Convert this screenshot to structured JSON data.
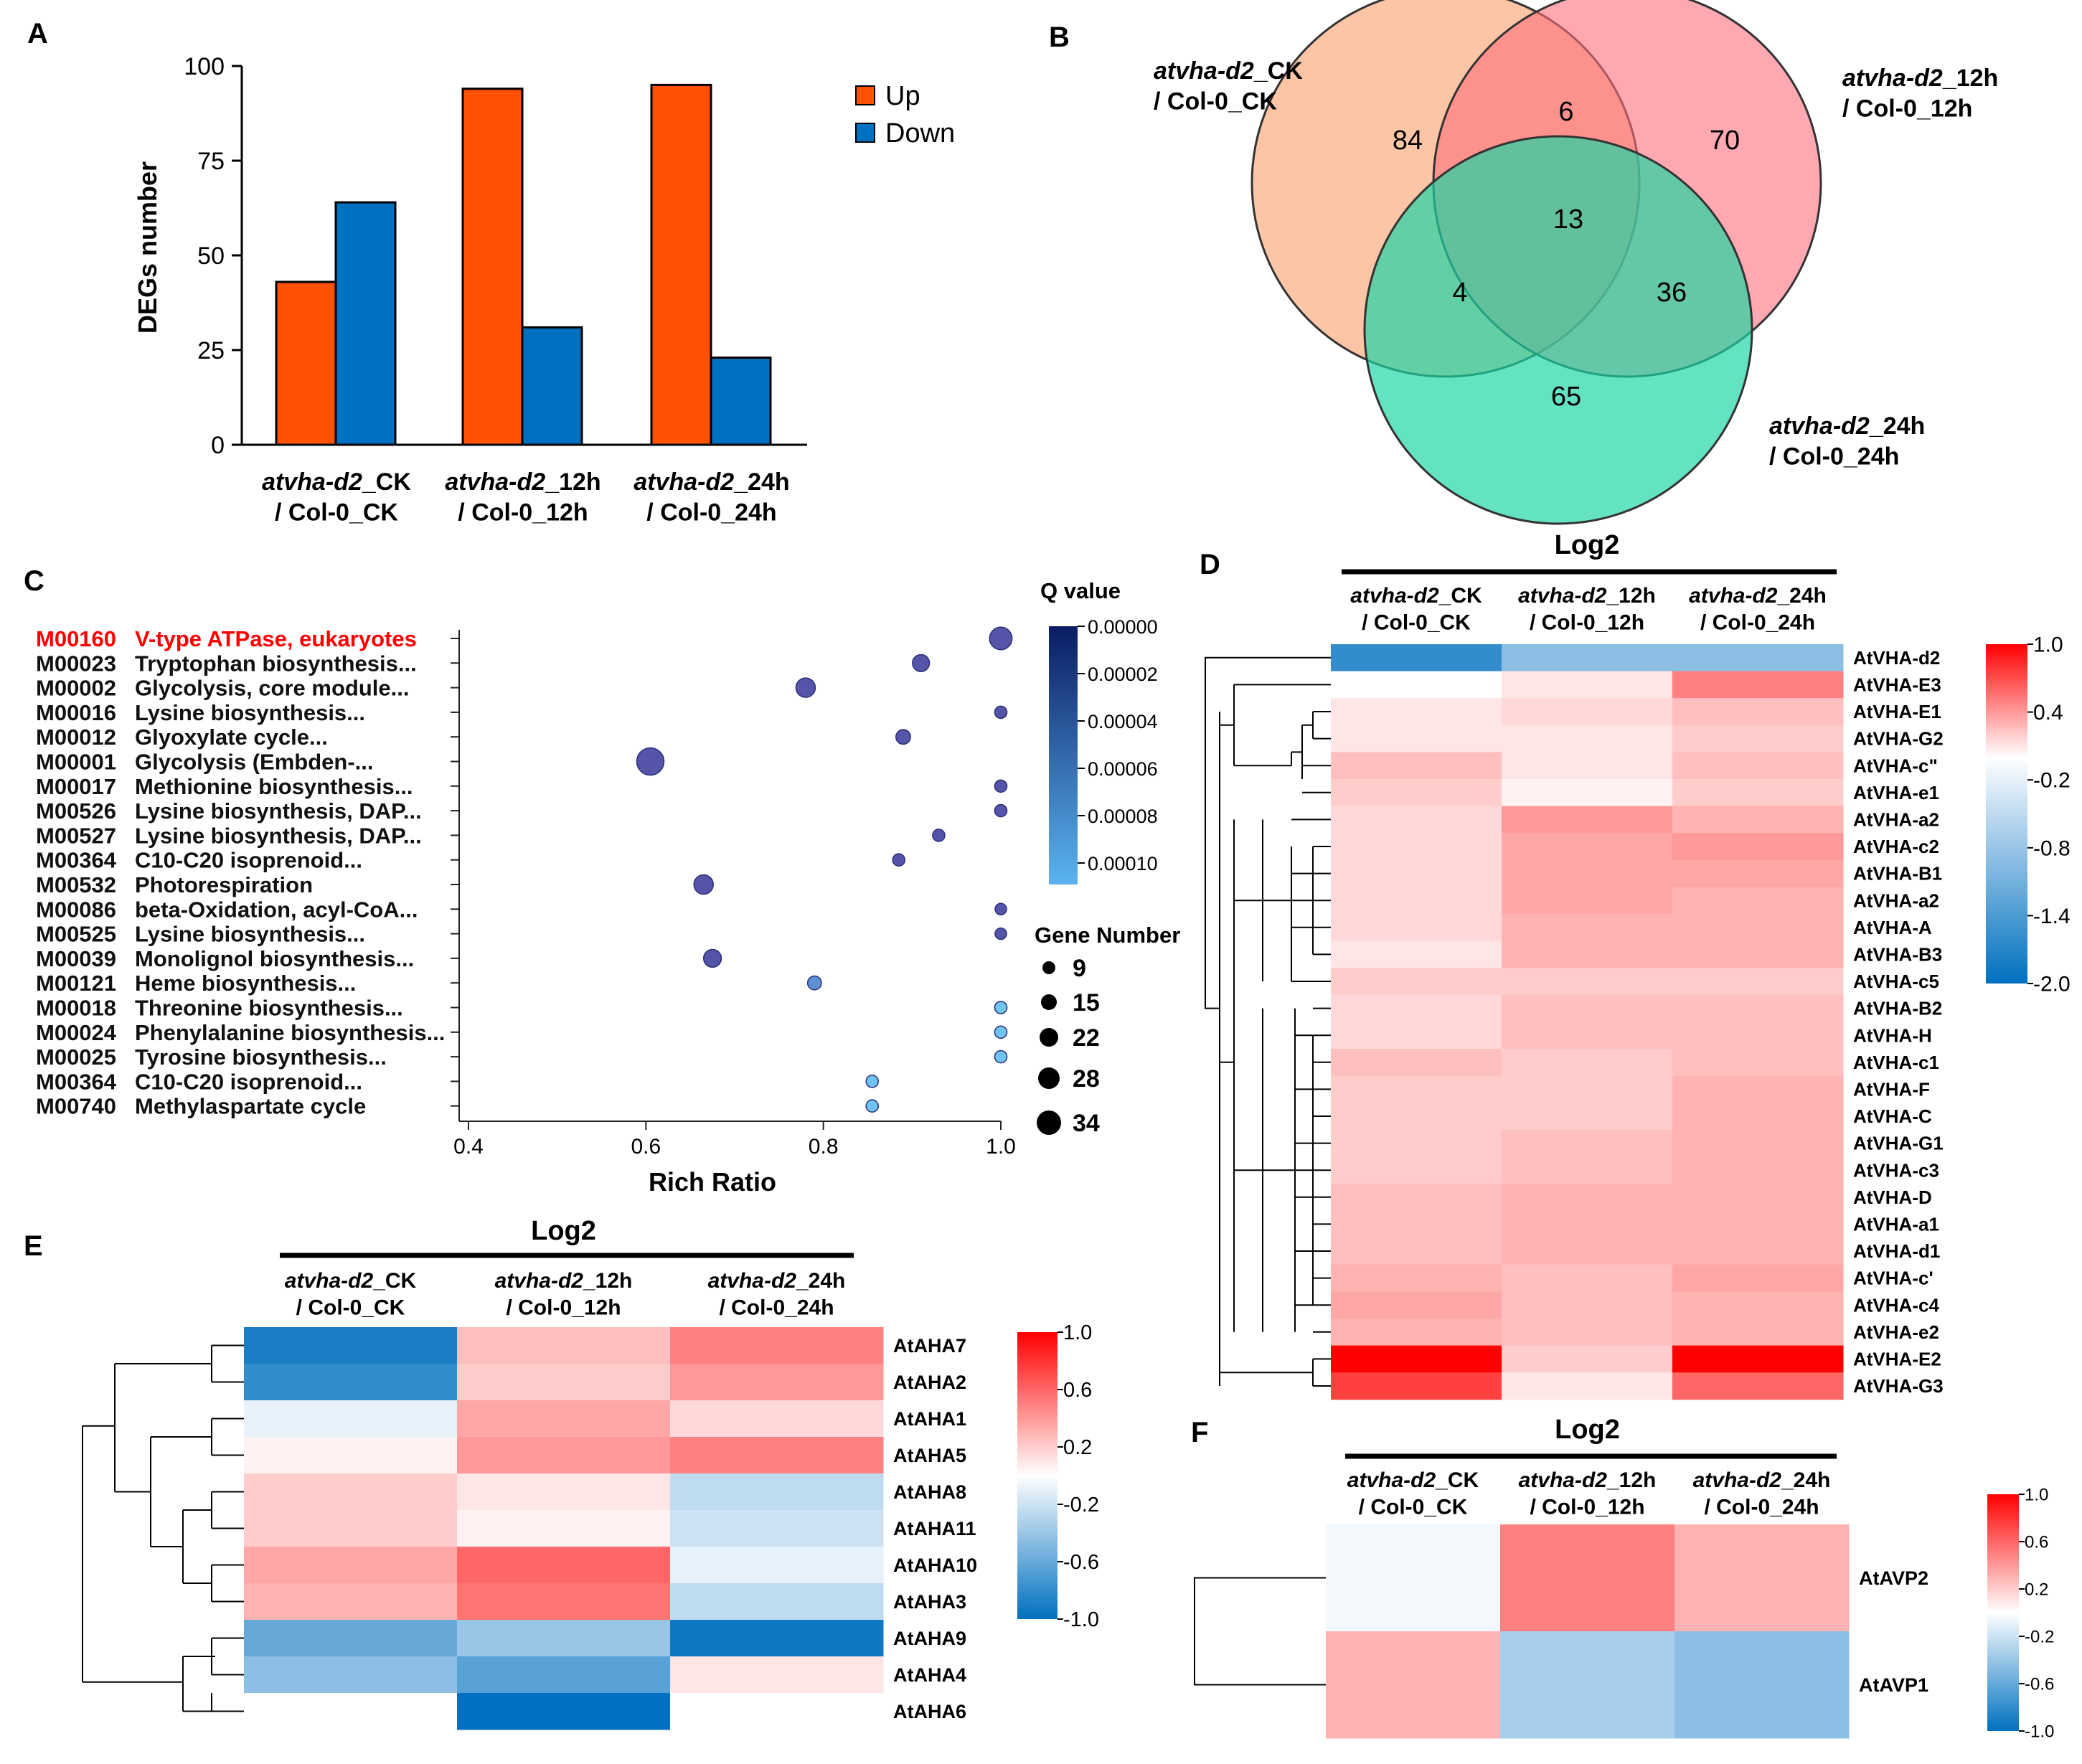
{
  "panel_labels": [
    "A",
    "B",
    "C",
    "D",
    "E",
    "F"
  ],
  "colors": {
    "up": "#ff5104",
    "down": "#0070c0",
    "venn": [
      "#fa9e6a",
      "#fe6f7d",
      "#19d6a4"
    ],
    "highlight": "#ff0000",
    "heat_max": "#ff0000",
    "heat_mid": "#ffffff",
    "heat_min": "#0070c0",
    "q_max": "#0a1c64",
    "q_min": "#5ab4f0"
  },
  "comparisons": [
    {
      "line1_italic": "atvha-d2",
      "line1_rest": "_CK",
      "line2": "/ Col-0_CK"
    },
    {
      "line1_italic": "atvha-d2",
      "line1_rest": "_12h",
      "line2": "/ Col-0_12h"
    },
    {
      "line1_italic": "atvha-d2",
      "line1_rest": "_24h",
      "line2": "/ Col-0_24h"
    }
  ],
  "chart_data": [
    {
      "id": "A",
      "type": "bar",
      "ylabel": "DEGs number",
      "ylim": [
        0,
        100
      ],
      "yticks": [
        "0",
        "25",
        "50",
        "75",
        "100"
      ],
      "categories": [
        "atvha-d2_CK / Col-0_CK",
        "atvha-d2_12h / Col-0_12h",
        "atvha-d2_24h / Col-0_24h"
      ],
      "series": [
        {
          "name": "Up",
          "values": [
            43,
            94,
            95
          ]
        },
        {
          "name": "Down",
          "values": [
            64,
            31,
            23
          ]
        }
      ]
    },
    {
      "id": "B",
      "type": "venn",
      "sets": [
        {
          "italic": "atvha-d2",
          "rest": "_CK",
          "line2": "/ Col-0_CK"
        },
        {
          "italic": "atvha-d2",
          "rest": "_12h",
          "line2": "/ Col-0_12h"
        },
        {
          "italic": "atvha-d2",
          "rest": "_24h",
          "line2": "/ Col-0_24h"
        }
      ],
      "regions": {
        "A_only": "84",
        "AB": "6",
        "B_only": "70",
        "ABC": "13",
        "AC": "4",
        "BC": "36",
        "C_only": "65"
      }
    },
    {
      "id": "C",
      "type": "scatter",
      "xlabel": "Rich Ratio",
      "xlim": [
        0.4,
        1.0
      ],
      "xticks": [
        "0.4",
        "0.6",
        "0.8",
        "1.0"
      ],
      "legend_q_title": "Q value",
      "q_ticks": [
        "0.00000",
        "0.00002",
        "0.00004",
        "0.00006",
        "0.00008",
        "0.00010"
      ],
      "legend_size_title": "Gene Number",
      "size_legend": [
        "9",
        "15",
        "22",
        "28",
        "34"
      ],
      "terms": [
        {
          "id": "M00160",
          "name": "V-type ATPase, eukaryotes",
          "x": 1.0,
          "size": 22,
          "q": 3.5e-05,
          "highlight": true
        },
        {
          "id": "M00023",
          "name": "Tryptophan biosynthesis...",
          "x": 0.91,
          "size": 15,
          "q": 4.5e-05
        },
        {
          "id": "M00002",
          "name": "Glycolysis, core module...",
          "x": 0.78,
          "size": 18,
          "q": 4e-05
        },
        {
          "id": "M00016",
          "name": "Lysine biosynthesis...",
          "x": 1.0,
          "size": 9,
          "q": 5e-05
        },
        {
          "id": "M00012",
          "name": "Glyoxylate cycle...",
          "x": 0.89,
          "size": 12,
          "q": 5e-05
        },
        {
          "id": "M00001",
          "name": "Glycolysis (Embden-...",
          "x": 0.605,
          "size": 28,
          "q": 4.5e-05
        },
        {
          "id": "M00017",
          "name": "Methionine biosynthesis...",
          "x": 1.0,
          "size": 9,
          "q": 5e-05
        },
        {
          "id": "M00526",
          "name": "Lysine biosynthesis, DAP...",
          "x": 1.0,
          "size": 9,
          "q": 5e-05
        },
        {
          "id": "M00527",
          "name": "Lysine biosynthesis, DAP...",
          "x": 0.93,
          "size": 9,
          "q": 5e-05
        },
        {
          "id": "M00364",
          "name": "C10-C20 isoprenoid...",
          "x": 0.885,
          "size": 9,
          "q": 5e-05
        },
        {
          "id": "M00532",
          "name": "Photorespiration",
          "x": 0.665,
          "size": 18,
          "q": 5e-05
        },
        {
          "id": "M00086",
          "name": "beta-Oxidation, acyl-CoA...",
          "x": 1.0,
          "size": 8,
          "q": 5e-05
        },
        {
          "id": "M00525",
          "name": "Lysine biosynthesis...",
          "x": 1.0,
          "size": 8,
          "q": 5e-05
        },
        {
          "id": "M00039",
          "name": "Monolignol biosynthesis...",
          "x": 0.675,
          "size": 16,
          "q": 5e-05
        },
        {
          "id": "M00121",
          "name": "Heme biosynthesis...",
          "x": 0.79,
          "size": 11,
          "q": 8e-05
        },
        {
          "id": "M00018",
          "name": "Threonine biosynthesis...",
          "x": 1.0,
          "size": 9,
          "q": 0.0001
        },
        {
          "id": "M00024",
          "name": "Phenylalanine biosynthesis...",
          "x": 1.0,
          "size": 9,
          "q": 0.0001
        },
        {
          "id": "M00025",
          "name": "Tyrosine biosynthesis...",
          "x": 1.0,
          "size": 9,
          "q": 0.0001
        },
        {
          "id": "M00364",
          "name": "C10-C20 isoprenoid...",
          "x": 0.855,
          "size": 9,
          "q": 0.0001
        },
        {
          "id": "M00740",
          "name": "Methylaspartate cycle",
          "x": 0.855,
          "size": 9,
          "q": 0.0001
        }
      ]
    },
    {
      "id": "D",
      "type": "heatmap",
      "title": "Log2",
      "vmin": -2.0,
      "vmax": 1.0,
      "colorbar_ticks": [
        "1.0",
        "0.4",
        "-0.2",
        "-0.8",
        "-1.4",
        "-2.0"
      ],
      "rows": [
        "AtVHA-d2",
        "AtVHA-E3",
        "AtVHA-E1",
        "AtVHA-G2",
        "AtVHA-c\"",
        "AtVHA-e1",
        "AtVHA-a2",
        "AtVHA-c2",
        "AtVHA-B1",
        "AtVHA-a2",
        "AtVHA-A",
        "AtVHA-B3",
        "AtVHA-c5",
        "AtVHA-B2",
        "AtVHA-H",
        "AtVHA-c1",
        "AtVHA-F",
        "AtVHA-C",
        "AtVHA-G1",
        "AtVHA-c3",
        "AtVHA-D",
        "AtVHA-a1",
        "AtVHA-d1",
        "AtVHA-c'",
        "AtVHA-c4",
        "AtVHA-e2",
        "AtVHA-E2",
        "AtVHA-G3"
      ],
      "values": [
        [
          -1.6,
          -0.9,
          -0.9
        ],
        [
          0.0,
          0.1,
          0.5
        ],
        [
          0.1,
          0.15,
          0.25
        ],
        [
          0.1,
          0.1,
          0.2
        ],
        [
          0.25,
          0.1,
          0.25
        ],
        [
          0.2,
          0.05,
          0.2
        ],
        [
          0.15,
          0.4,
          0.3
        ],
        [
          0.15,
          0.35,
          0.4
        ],
        [
          0.15,
          0.35,
          0.35
        ],
        [
          0.15,
          0.35,
          0.3
        ],
        [
          0.15,
          0.3,
          0.3
        ],
        [
          0.1,
          0.3,
          0.3
        ],
        [
          0.2,
          0.2,
          0.2
        ],
        [
          0.15,
          0.25,
          0.25
        ],
        [
          0.15,
          0.25,
          0.25
        ],
        [
          0.25,
          0.2,
          0.25
        ],
        [
          0.2,
          0.2,
          0.3
        ],
        [
          0.2,
          0.2,
          0.3
        ],
        [
          0.2,
          0.25,
          0.3
        ],
        [
          0.2,
          0.25,
          0.3
        ],
        [
          0.25,
          0.3,
          0.3
        ],
        [
          0.25,
          0.3,
          0.3
        ],
        [
          0.25,
          0.3,
          0.3
        ],
        [
          0.3,
          0.25,
          0.35
        ],
        [
          0.35,
          0.25,
          0.3
        ],
        [
          0.3,
          0.25,
          0.3
        ],
        [
          1.0,
          0.2,
          1.0
        ],
        [
          0.75,
          0.1,
          0.6
        ]
      ]
    },
    {
      "id": "E",
      "type": "heatmap",
      "title": "Log2",
      "vmin": -1.0,
      "vmax": 1.0,
      "colorbar_ticks": [
        "1.0",
        "0.6",
        "0.2",
        "-0.2",
        "-0.6",
        "-1.0"
      ],
      "rows": [
        "AtAHA7",
        "AtAHA2",
        "AtAHA1",
        "AtAHA5",
        "AtAHA8",
        "AtAHA11",
        "AtAHA10",
        "AtAHA3",
        "AtAHA9",
        "AtAHA4",
        "AtAHA6"
      ],
      "values": [
        [
          -0.9,
          0.25,
          0.5
        ],
        [
          -0.8,
          0.2,
          0.4
        ],
        [
          -0.1,
          0.35,
          0.15
        ],
        [
          0.05,
          0.4,
          0.5
        ],
        [
          0.2,
          0.1,
          -0.25
        ],
        [
          0.2,
          0.05,
          -0.2
        ],
        [
          0.35,
          0.6,
          -0.1
        ],
        [
          0.3,
          0.55,
          -0.25
        ],
        [
          -0.6,
          -0.4,
          -0.95
        ],
        [
          -0.45,
          -0.65,
          0.1
        ],
        [
          null,
          -1.0,
          null
        ]
      ]
    },
    {
      "id": "F",
      "type": "heatmap",
      "title": "Log2",
      "vmin": -1.0,
      "vmax": 1.0,
      "colorbar_ticks": [
        "1.0",
        "0.6",
        "0.2",
        "-0.2",
        "-0.6",
        "-1.0"
      ],
      "rows": [
        "AtAVP2",
        "AtAVP1"
      ],
      "values": [
        [
          -0.05,
          0.5,
          0.3
        ],
        [
          0.3,
          -0.35,
          -0.45
        ]
      ]
    }
  ]
}
